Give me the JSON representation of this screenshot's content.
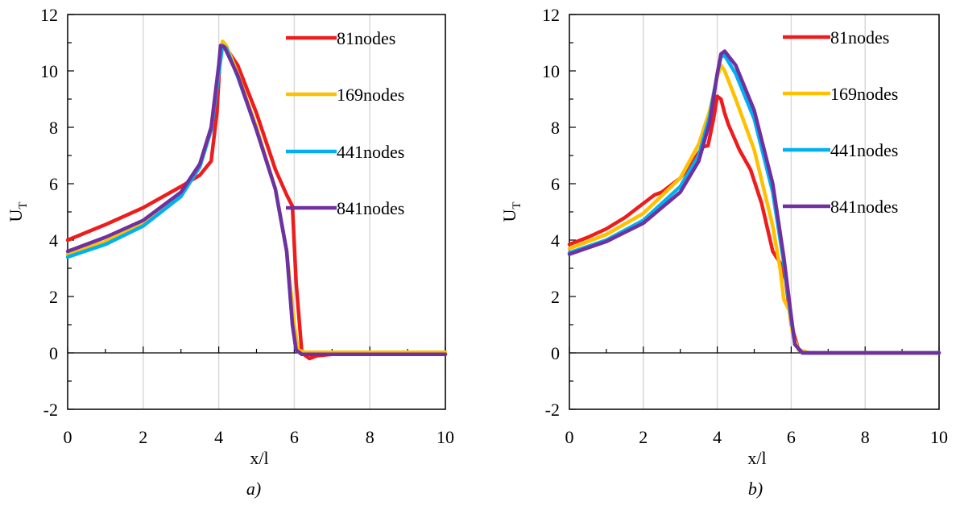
{
  "colors": {
    "81nodes": "#ee1c1c",
    "169nodes": "#ffc000",
    "441nodes": "#00b0f0",
    "841nodes": "#7030a0",
    "grid": "#d9d9d9",
    "axis": "#000000"
  },
  "chart_data": [
    {
      "type": "line",
      "caption": "a)",
      "xlabel": "x/l",
      "ylabel": "U",
      "ylabel_sub": "T",
      "xlim": [
        0,
        10
      ],
      "ylim": [
        -2,
        12
      ],
      "xticks": [
        0,
        2,
        4,
        6,
        8,
        10
      ],
      "yticks": [
        -2,
        0,
        2,
        4,
        6,
        8,
        10,
        12
      ],
      "grid": true,
      "legend": "top-right",
      "series": [
        {
          "name": "81nodes",
          "color": "#ee1c1c",
          "x": [
            0,
            1,
            2,
            3,
            3.5,
            3.8,
            3.95,
            4.05,
            4.15,
            4.5,
            5,
            5.5,
            5.8,
            5.95,
            6.05,
            6.2,
            6.4,
            6.6,
            7,
            8,
            9,
            10
          ],
          "y": [
            4.0,
            4.55,
            5.15,
            5.9,
            6.3,
            6.8,
            8.5,
            10.8,
            10.9,
            10.2,
            8.5,
            6.5,
            5.6,
            5.2,
            2.5,
            0.0,
            -0.2,
            -0.1,
            -0.05,
            -0.05,
            -0.05,
            -0.05
          ]
        },
        {
          "name": "169nodes",
          "color": "#ffc000",
          "x": [
            0,
            1,
            2,
            3,
            3.5,
            3.8,
            4.0,
            4.1,
            4.2,
            4.5,
            5,
            5.5,
            5.8,
            6.0,
            6.1,
            6.3,
            7,
            8,
            9,
            10
          ],
          "y": [
            3.5,
            3.95,
            4.6,
            5.6,
            6.7,
            8.0,
            10.0,
            11.05,
            10.9,
            9.9,
            8.0,
            5.8,
            3.6,
            1.0,
            0.1,
            0.02,
            0.02,
            0.02,
            0.02,
            0.02
          ]
        },
        {
          "name": "441nodes",
          "color": "#00b0f0",
          "x": [
            0,
            1,
            2,
            3,
            3.5,
            3.8,
            4.0,
            4.1,
            4.2,
            4.5,
            5,
            5.5,
            5.8,
            5.95,
            6.05,
            6.2,
            7,
            8,
            9,
            10
          ],
          "y": [
            3.4,
            3.85,
            4.5,
            5.55,
            6.6,
            7.9,
            9.9,
            10.9,
            10.8,
            9.8,
            7.9,
            5.8,
            3.6,
            1.0,
            0.1,
            -0.05,
            -0.05,
            -0.05,
            -0.05,
            -0.05
          ]
        },
        {
          "name": "841nodes",
          "color": "#7030a0",
          "x": [
            0,
            1,
            2,
            3,
            3.5,
            3.8,
            4.0,
            4.05,
            4.15,
            4.5,
            5,
            5.5,
            5.8,
            5.95,
            6.05,
            6.2,
            7,
            8,
            9,
            10
          ],
          "y": [
            3.6,
            4.1,
            4.7,
            5.7,
            6.7,
            8.0,
            10.2,
            10.9,
            10.85,
            9.85,
            7.9,
            5.8,
            3.6,
            1.0,
            0.1,
            -0.05,
            -0.05,
            -0.05,
            -0.05,
            -0.05
          ]
        }
      ]
    },
    {
      "type": "line",
      "caption": "b)",
      "xlabel": "x/l",
      "ylabel": "U",
      "ylabel_sub": "T",
      "xlim": [
        0,
        10
      ],
      "ylim": [
        -2,
        12
      ],
      "xticks": [
        0,
        2,
        4,
        6,
        8,
        10
      ],
      "yticks": [
        -2,
        0,
        2,
        4,
        6,
        8,
        10,
        12
      ],
      "grid": true,
      "legend": "top-right",
      "series": [
        {
          "name": "81nodes",
          "color": "#ee1c1c",
          "x": [
            0,
            0.5,
            1,
            1.5,
            2,
            2.3,
            2.5,
            2.8,
            3.0,
            3.3,
            3.6,
            3.75,
            3.9,
            4.0,
            4.1,
            4.2,
            4.3,
            4.6,
            4.9,
            5.2,
            5.5,
            5.7,
            5.85,
            6.0,
            6.2,
            6.5,
            7,
            8,
            9,
            10
          ],
          "y": [
            3.85,
            4.1,
            4.4,
            4.8,
            5.3,
            5.6,
            5.7,
            6.0,
            6.2,
            6.7,
            7.3,
            7.35,
            8.3,
            9.1,
            9.0,
            8.5,
            8.1,
            7.2,
            6.5,
            5.3,
            3.6,
            3.2,
            2.6,
            1.0,
            0.1,
            0.0,
            0.0,
            0.0,
            0.0,
            0.0
          ]
        },
        {
          "name": "169nodes",
          "color": "#ffc000",
          "x": [
            0,
            1,
            2,
            3,
            3.5,
            3.8,
            4.0,
            4.1,
            4.2,
            4.5,
            5.0,
            5.5,
            5.7,
            5.8,
            5.95,
            6.05,
            6.2,
            6.5,
            7,
            8,
            9,
            10
          ],
          "y": [
            3.7,
            4.2,
            4.95,
            6.2,
            7.4,
            8.6,
            9.8,
            10.2,
            10.0,
            9.0,
            7.2,
            4.5,
            3.0,
            1.9,
            1.5,
            0.6,
            0.1,
            0.0,
            0.0,
            0.0,
            0.0,
            0.0
          ]
        },
        {
          "name": "441nodes",
          "color": "#00b0f0",
          "x": [
            0,
            1,
            2,
            3,
            3.5,
            3.8,
            4.0,
            4.1,
            4.2,
            4.5,
            5.0,
            5.5,
            5.8,
            6.0,
            6.1,
            6.3,
            7,
            8,
            9,
            10
          ],
          "y": [
            3.55,
            4.0,
            4.7,
            5.9,
            7.0,
            8.4,
            9.9,
            10.5,
            10.55,
            9.9,
            8.3,
            5.7,
            3.2,
            1.2,
            0.3,
            0.0,
            0.0,
            0.0,
            0.0,
            0.0
          ]
        },
        {
          "name": "841nodes",
          "color": "#7030a0",
          "x": [
            0,
            1,
            2,
            3,
            3.5,
            3.8,
            4.0,
            4.1,
            4.2,
            4.5,
            5.0,
            5.5,
            5.8,
            6.0,
            6.1,
            6.3,
            7,
            8,
            9,
            10
          ],
          "y": [
            3.5,
            3.95,
            4.6,
            5.7,
            6.8,
            8.2,
            9.9,
            10.6,
            10.7,
            10.2,
            8.6,
            6.0,
            3.4,
            1.3,
            0.3,
            0.0,
            0.0,
            0.0,
            0.0,
            0.0
          ]
        }
      ]
    }
  ]
}
